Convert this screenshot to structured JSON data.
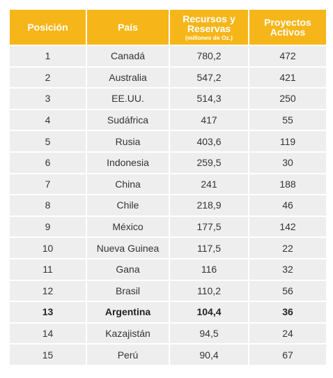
{
  "table": {
    "headers": [
      {
        "label": "Posición",
        "sub": ""
      },
      {
        "label": "País",
        "sub": ""
      },
      {
        "label": "Recursos y Reservas",
        "sub": "(millones de Oz.)"
      },
      {
        "label": "Proyectos Activos",
        "sub": ""
      }
    ],
    "rows": [
      {
        "pos": "1",
        "country": "Canadá",
        "resources": "780,2",
        "projects": "472"
      },
      {
        "pos": "2",
        "country": "Australia",
        "resources": "547,2",
        "projects": "421"
      },
      {
        "pos": "3",
        "country": "EE.UU.",
        "resources": "514,3",
        "projects": "250"
      },
      {
        "pos": "4",
        "country": "Sudáfrica",
        "resources": "417",
        "projects": "55"
      },
      {
        "pos": "5",
        "country": "Rusia",
        "resources": "403,6",
        "projects": "119"
      },
      {
        "pos": "6",
        "country": "Indonesia",
        "resources": "259,5",
        "projects": "30"
      },
      {
        "pos": "7",
        "country": "China",
        "resources": "241",
        "projects": "188"
      },
      {
        "pos": "8",
        "country": "Chile",
        "resources": "218,9",
        "projects": "46"
      },
      {
        "pos": "9",
        "country": "México",
        "resources": "177,5",
        "projects": "142"
      },
      {
        "pos": "10",
        "country": "Nueva Guinea",
        "resources": "117,5",
        "projects": "22"
      },
      {
        "pos": "11",
        "country": "Gana",
        "resources": "116",
        "projects": "32"
      },
      {
        "pos": "12",
        "country": "Brasil",
        "resources": "110,2",
        "projects": "56"
      },
      {
        "pos": "13",
        "country": "Argentina",
        "resources": "104,4",
        "projects": "36"
      },
      {
        "pos": "14",
        "country": "Kazajistán",
        "resources": "94,5",
        "projects": "24"
      },
      {
        "pos": "15",
        "country": "Perú",
        "resources": "90,4",
        "projects": "67"
      }
    ],
    "highlight_pos": "13",
    "colors": {
      "header_bg": "#f6b61a",
      "header_text": "#ffffff",
      "row_bg": "#eeeeee",
      "row_text": "#333333"
    }
  }
}
